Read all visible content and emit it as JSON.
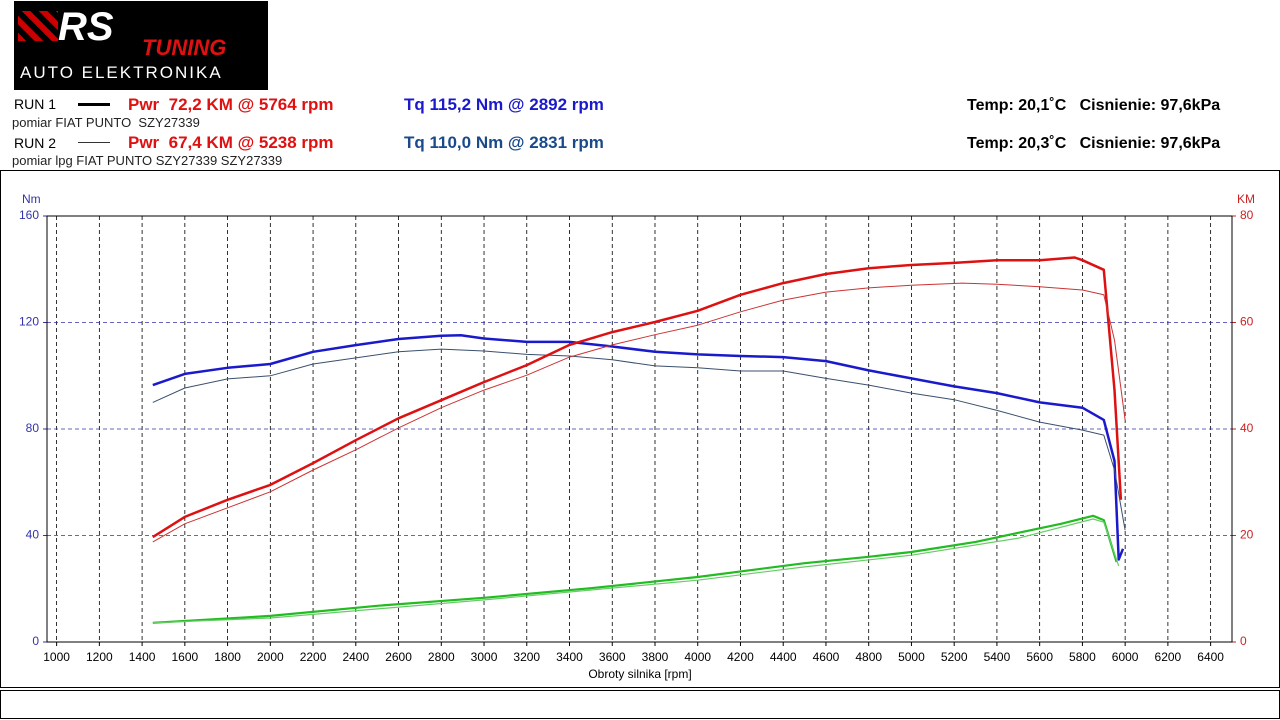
{
  "header": {
    "logo_main": "RS",
    "logo_sub": "TUNING",
    "logo_tag": "AUTO ELEKTRONIKA",
    "run1": {
      "label": "RUN 1",
      "power": "Pwr  72,2 KM @ 5764 rpm",
      "torque": "Tq 115,2 Nm @ 2892 rpm",
      "conditions": "Temp: 20,1˚C   Cisnienie: 97,6kPa",
      "description": "pomiar FIAT PUNTO  SZY27339"
    },
    "run2": {
      "label": "RUN 2",
      "power": "Pwr  67,4 KM @ 5238 rpm",
      "torque": "Tq 110,0 Nm @ 2831 rpm",
      "conditions": "Temp: 20,3˚C   Cisnienie: 97,6kPa",
      "description": "pomiar lpg FIAT PUNTO SZY27339 SZY27339"
    }
  },
  "chart_data": {
    "type": "line",
    "x_label": "Obroty silnika [rpm]",
    "y_label": "Nm",
    "y2_label": "KM",
    "xlim": [
      955,
      6500
    ],
    "xticks": [
      1000,
      1200,
      1400,
      1600,
      1800,
      2000,
      2200,
      2400,
      2600,
      2800,
      3000,
      3200,
      3400,
      3600,
      3800,
      4000,
      4200,
      4400,
      4600,
      4800,
      5000,
      5200,
      5400,
      5600,
      5800,
      6000,
      6200,
      6400
    ],
    "ylim": [
      0,
      160
    ],
    "yticks": [
      0,
      40,
      80,
      120,
      160
    ],
    "y2lim": [
      0,
      80
    ],
    "y2ticks": [
      0,
      20,
      40,
      60,
      80
    ],
    "grid": true,
    "series": [
      {
        "color": "#1a1acc",
        "axis": "y",
        "x": [
          1450,
          1600,
          1800,
          1900,
          2000,
          2200,
          2400,
          2600,
          2800,
          2892,
          3000,
          3200,
          3400,
          3600,
          3800,
          4000,
          4200,
          4400,
          4600,
          4800,
          5000,
          5200,
          5400,
          5600,
          5800,
          5900,
          5950,
          5970,
          5990
        ],
        "values": [
          96.5,
          100.7,
          103,
          103.7,
          104.4,
          109,
          111.5,
          113.8,
          115,
          115.2,
          114,
          112.7,
          112.7,
          111,
          109,
          108,
          107.4,
          107,
          105.5,
          102,
          99,
          96,
          93.5,
          90,
          88,
          83.4,
          68,
          31,
          35
        ]
      },
      {
        "color": "#3a4f6e",
        "axis": "y",
        "x": [
          1450,
          1600,
          1800,
          2000,
          2200,
          2400,
          2600,
          2800,
          3000,
          3200,
          3400,
          3600,
          3800,
          4000,
          4200,
          4400,
          4600,
          4800,
          5000,
          5200,
          5400,
          5600,
          5800,
          5900,
          5950,
          6000
        ],
        "values": [
          90,
          95.4,
          98.8,
          100,
          104.4,
          106.7,
          109,
          110,
          109.3,
          108,
          107.4,
          106,
          103.7,
          103,
          101.8,
          101.8,
          99,
          96.5,
          93.5,
          91,
          87,
          82.6,
          79.6,
          77.7,
          64.6,
          42
        ]
      },
      {
        "color": "#dd1111",
        "axis": "y2",
        "x": [
          1450,
          1600,
          1800,
          2000,
          2200,
          2400,
          2600,
          2800,
          3000,
          3200,
          3400,
          3600,
          3800,
          4000,
          4200,
          4400,
          4600,
          4800,
          5000,
          5200,
          5400,
          5600,
          5764,
          5800,
          5900,
          5950,
          5980
        ],
        "values": [
          19.7,
          23.5,
          26.7,
          29.5,
          33.6,
          37.9,
          42,
          45.4,
          48.8,
          52,
          55.8,
          58.2,
          60.1,
          62.2,
          65.2,
          67.4,
          69.1,
          70.2,
          70.8,
          71.2,
          71.7,
          71.7,
          72.2,
          71.7,
          69.9,
          47.3,
          26.7
        ]
      },
      {
        "color": "#cc3333",
        "axis": "y2",
        "x": [
          1450,
          1600,
          1800,
          2000,
          2200,
          2400,
          2600,
          2800,
          3000,
          3200,
          3400,
          3600,
          3800,
          4000,
          4200,
          4400,
          4600,
          4800,
          5000,
          5238,
          5400,
          5600,
          5800,
          5900,
          5950,
          6000
        ],
        "values": [
          18.8,
          22.2,
          25.2,
          28.2,
          32.3,
          36.1,
          40.2,
          44,
          47.3,
          50.1,
          53.5,
          55.8,
          57.7,
          59.5,
          62,
          64.2,
          65.7,
          66.5,
          67,
          67.4,
          67.2,
          66.7,
          66.1,
          65.2,
          56.7,
          41.7
        ]
      },
      {
        "color": "#22bb22",
        "axis": "y2",
        "x": [
          1450,
          2000,
          2500,
          3000,
          3500,
          4000,
          4500,
          4800,
          5000,
          5300,
          5500,
          5700,
          5850,
          5900,
          5960
        ],
        "values": [
          3.6,
          4.9,
          6.8,
          8.3,
          10.1,
          12.2,
          14.8,
          16,
          16.9,
          18.8,
          20.5,
          22.2,
          23.7,
          22.9,
          15
        ]
      },
      {
        "color": "#66cc66",
        "axis": "y2",
        "x": [
          1450,
          2000,
          3000,
          4000,
          4500,
          5000,
          5500,
          5850,
          5900,
          5970
        ],
        "values": [
          3.6,
          4.5,
          7.9,
          11.6,
          14.1,
          16.3,
          19.5,
          23.1,
          22.5,
          14.3
        ]
      }
    ]
  }
}
